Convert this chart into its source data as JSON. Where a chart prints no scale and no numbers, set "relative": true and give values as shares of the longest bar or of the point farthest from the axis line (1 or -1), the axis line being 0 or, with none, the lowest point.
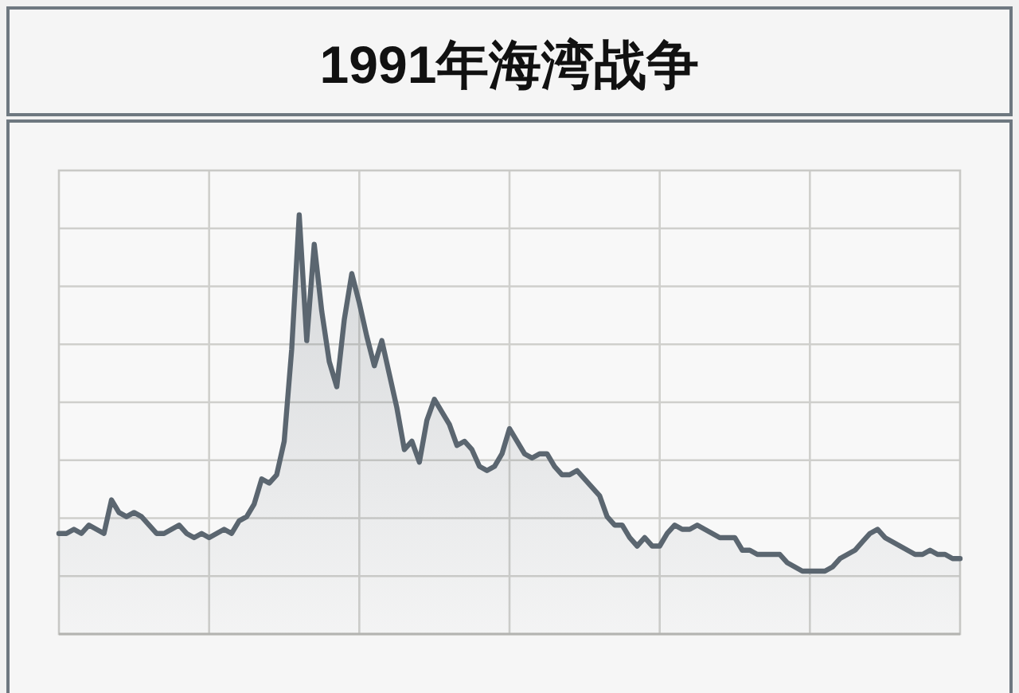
{
  "chart_data": {
    "type": "area",
    "title": "1991年海湾战争",
    "relative": true,
    "grid": true,
    "color": "#5b6670",
    "categories": [
      null,
      null,
      null,
      null,
      null,
      null,
      null,
      null,
      null,
      null,
      null,
      null,
      null,
      null,
      null,
      null,
      null,
      null,
      null,
      null,
      null,
      null,
      null,
      null,
      null,
      null,
      null,
      null,
      null,
      null,
      null,
      null,
      null,
      null,
      null,
      null,
      null,
      null,
      null,
      null,
      null,
      null,
      null,
      null,
      null,
      null,
      null,
      null,
      null,
      null,
      null,
      null,
      null,
      null,
      null,
      null,
      null,
      null,
      null,
      null,
      null,
      null,
      null,
      null,
      null,
      null,
      null,
      null,
      null,
      null,
      null,
      null,
      null,
      null,
      null,
      null,
      null,
      null,
      null,
      null,
      null,
      null,
      null,
      null,
      null,
      null,
      null,
      null,
      null,
      null,
      null,
      null,
      null,
      null,
      null,
      null,
      null,
      null,
      null,
      null,
      null,
      null,
      null,
      null,
      null,
      null,
      null,
      null,
      null,
      null,
      null,
      null,
      null,
      null,
      null,
      null,
      null,
      null,
      null,
      null,
      null
    ],
    "values": [
      0.24,
      0.24,
      0.25,
      0.24,
      0.26,
      0.25,
      0.24,
      0.32,
      0.29,
      0.28,
      0.29,
      0.28,
      0.26,
      0.24,
      0.24,
      0.25,
      0.26,
      0.24,
      0.23,
      0.24,
      0.23,
      0.24,
      0.25,
      0.24,
      0.27,
      0.28,
      0.31,
      0.37,
      0.36,
      0.38,
      0.46,
      0.68,
      1,
      0.7,
      0.93,
      0.77,
      0.65,
      0.59,
      0.75,
      0.86,
      0.79,
      0.71,
      0.64,
      0.7,
      0.62,
      0.54,
      0.44,
      0.46,
      0.41,
      0.51,
      0.56,
      0.53,
      0.5,
      0.45,
      0.46,
      0.44,
      0.4,
      0.39,
      0.4,
      0.43,
      0.49,
      0.46,
      0.43,
      0.42,
      0.43,
      0.43,
      0.4,
      0.38,
      0.38,
      0.39,
      0.37,
      0.35,
      0.33,
      0.28,
      0.26,
      0.26,
      0.23,
      0.21,
      0.23,
      0.21,
      0.21,
      0.24,
      0.26,
      0.25,
      0.25,
      0.26,
      0.25,
      0.24,
      0.23,
      0.23,
      0.23,
      0.2,
      0.2,
      0.19,
      0.19,
      0.19,
      0.19,
      0.17,
      0.16,
      0.15,
      0.15,
      0.15,
      0.15,
      0.16,
      0.18,
      0.19,
      0.2,
      0.22,
      0.24,
      0.25,
      0.23,
      0.22,
      0.21,
      0.2,
      0.19,
      0.19,
      0.2,
      0.19,
      0.19,
      0.18,
      0.18
    ]
  }
}
